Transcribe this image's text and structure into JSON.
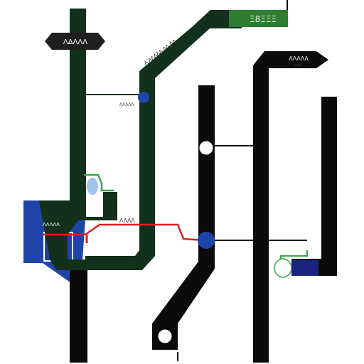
{
  "map": {
    "labels": {
      "top_left_sign": "ΛΔΛΛΛ",
      "top_right_sign": "Ξ8ΞΞΞ",
      "right_sign": "ΛΛΛΛΛ",
      "right_sign_sub": "------",
      "diag_upper": "Λ ΛΛΛΛΛ ΛΛ ΛΛ",
      "diag_lower": "ΛΛΛΛ",
      "hub_left_text": "ΛΛΛΛΛ",
      "mid_small": "ΛΛΛΛ",
      "blue_panel_label": "ΛΛΛΛΛ"
    },
    "colors": {
      "line_black": "#0b0b0b",
      "line_dark_green": "#13301c",
      "sign_dark": "#1f1f1f",
      "sign_green": "#2e7d32",
      "accent_blue": "#1f44a8",
      "accent_red": "#e02020",
      "accent_green": "#3aa64a",
      "station_fill": "#ffffff"
    }
  }
}
